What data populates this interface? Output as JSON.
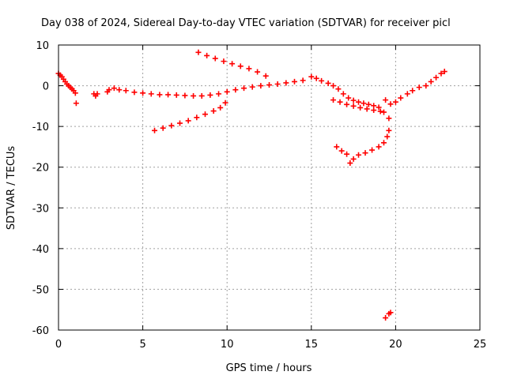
{
  "chart_data": {
    "type": "scatter",
    "title": "Day 038 of 2024, Sidereal Day-to-day VTEC variation (SDTVAR) for receiver picl",
    "xlabel": "GPS time / hours",
    "ylabel": "SDTVAR / TECUs",
    "xlim": [
      0,
      25
    ],
    "ylim": [
      -60,
      10
    ],
    "xticks": [
      0,
      5,
      10,
      15,
      20,
      25
    ],
    "yticks": [
      10,
      0,
      -10,
      -20,
      -30,
      -40,
      -50,
      -60
    ],
    "grid": true,
    "marker": "+",
    "color": "#ff0000",
    "series": [
      {
        "points": [
          [
            0.0,
            3.0
          ],
          [
            0.1,
            2.6
          ],
          [
            0.2,
            2.2
          ],
          [
            0.3,
            1.6
          ],
          [
            0.4,
            1.0
          ],
          [
            0.5,
            0.4
          ],
          [
            0.6,
            0.0
          ],
          [
            0.7,
            -0.4
          ],
          [
            0.8,
            -0.8
          ],
          [
            0.9,
            -1.2
          ],
          [
            1.0,
            -1.8
          ],
          [
            1.05,
            -4.3
          ],
          [
            2.1,
            -2.0
          ],
          [
            2.2,
            -2.5
          ],
          [
            2.3,
            -2.0
          ],
          [
            2.9,
            -1.5
          ],
          [
            3.0,
            -1.0
          ],
          [
            3.3,
            -0.6
          ],
          [
            3.6,
            -1.0
          ],
          [
            4.0,
            -1.2
          ],
          [
            4.5,
            -1.6
          ],
          [
            5.0,
            -1.8
          ],
          [
            5.5,
            -2.0
          ],
          [
            6.0,
            -2.2
          ],
          [
            6.5,
            -2.2
          ],
          [
            7.0,
            -2.3
          ],
          [
            7.5,
            -2.4
          ],
          [
            8.0,
            -2.5
          ],
          [
            8.5,
            -2.5
          ],
          [
            9.0,
            -2.3
          ],
          [
            9.5,
            -2.0
          ],
          [
            10.0,
            -1.5
          ],
          [
            10.5,
            -1.0
          ],
          [
            11.0,
            -0.6
          ],
          [
            11.5,
            -0.3
          ],
          [
            12.0,
            0.0
          ],
          [
            12.5,
            0.2
          ],
          [
            13.0,
            0.4
          ],
          [
            13.5,
            0.7
          ],
          [
            14.0,
            1.0
          ],
          [
            14.5,
            1.3
          ],
          [
            8.3,
            8.2
          ],
          [
            8.8,
            7.4
          ],
          [
            9.3,
            6.7
          ],
          [
            9.8,
            6.0
          ],
          [
            10.3,
            5.4
          ],
          [
            10.8,
            4.8
          ],
          [
            11.3,
            4.2
          ],
          [
            11.8,
            3.4
          ],
          [
            12.3,
            2.4
          ],
          [
            5.7,
            -11.0
          ],
          [
            6.2,
            -10.4
          ],
          [
            6.7,
            -9.8
          ],
          [
            7.2,
            -9.2
          ],
          [
            7.7,
            -8.6
          ],
          [
            8.2,
            -7.8
          ],
          [
            8.7,
            -7.0
          ],
          [
            9.2,
            -6.2
          ],
          [
            9.6,
            -5.4
          ],
          [
            9.9,
            -4.2
          ],
          [
            15.0,
            2.2
          ],
          [
            15.3,
            1.8
          ],
          [
            15.6,
            1.2
          ],
          [
            16.0,
            0.6
          ],
          [
            16.3,
            0.0
          ],
          [
            16.6,
            -0.8
          ],
          [
            16.9,
            -2.0
          ],
          [
            17.2,
            -3.0
          ],
          [
            17.5,
            -3.6
          ],
          [
            17.8,
            -4.0
          ],
          [
            18.1,
            -4.3
          ],
          [
            18.4,
            -4.6
          ],
          [
            18.7,
            -4.9
          ],
          [
            19.0,
            -5.3
          ],
          [
            19.3,
            -6.5
          ],
          [
            19.6,
            -8.0
          ],
          [
            16.3,
            -3.5
          ],
          [
            16.7,
            -4.0
          ],
          [
            17.1,
            -4.6
          ],
          [
            17.5,
            -5.0
          ],
          [
            17.9,
            -5.4
          ],
          [
            18.3,
            -5.7
          ],
          [
            18.7,
            -6.0
          ],
          [
            19.1,
            -6.3
          ],
          [
            19.4,
            -3.5
          ],
          [
            19.7,
            -4.5
          ],
          [
            20.0,
            -4.0
          ],
          [
            20.3,
            -3.0
          ],
          [
            20.7,
            -2.0
          ],
          [
            21.0,
            -1.2
          ],
          [
            21.4,
            -0.4
          ],
          [
            21.8,
            0.0
          ],
          [
            22.1,
            1.0
          ],
          [
            22.4,
            2.0
          ],
          [
            22.7,
            3.0
          ],
          [
            22.9,
            3.5
          ],
          [
            16.5,
            -15.0
          ],
          [
            16.8,
            -16.0
          ],
          [
            17.1,
            -16.8
          ],
          [
            17.3,
            -19.0
          ],
          [
            17.5,
            -18.0
          ],
          [
            17.8,
            -17.0
          ],
          [
            18.2,
            -16.5
          ],
          [
            18.6,
            -15.8
          ],
          [
            19.0,
            -15.0
          ],
          [
            19.3,
            -14.0
          ],
          [
            19.5,
            -12.5
          ],
          [
            19.6,
            -11.0
          ],
          [
            19.4,
            -57.0
          ],
          [
            19.6,
            -56.0
          ],
          [
            19.7,
            -55.7
          ]
        ]
      }
    ]
  }
}
